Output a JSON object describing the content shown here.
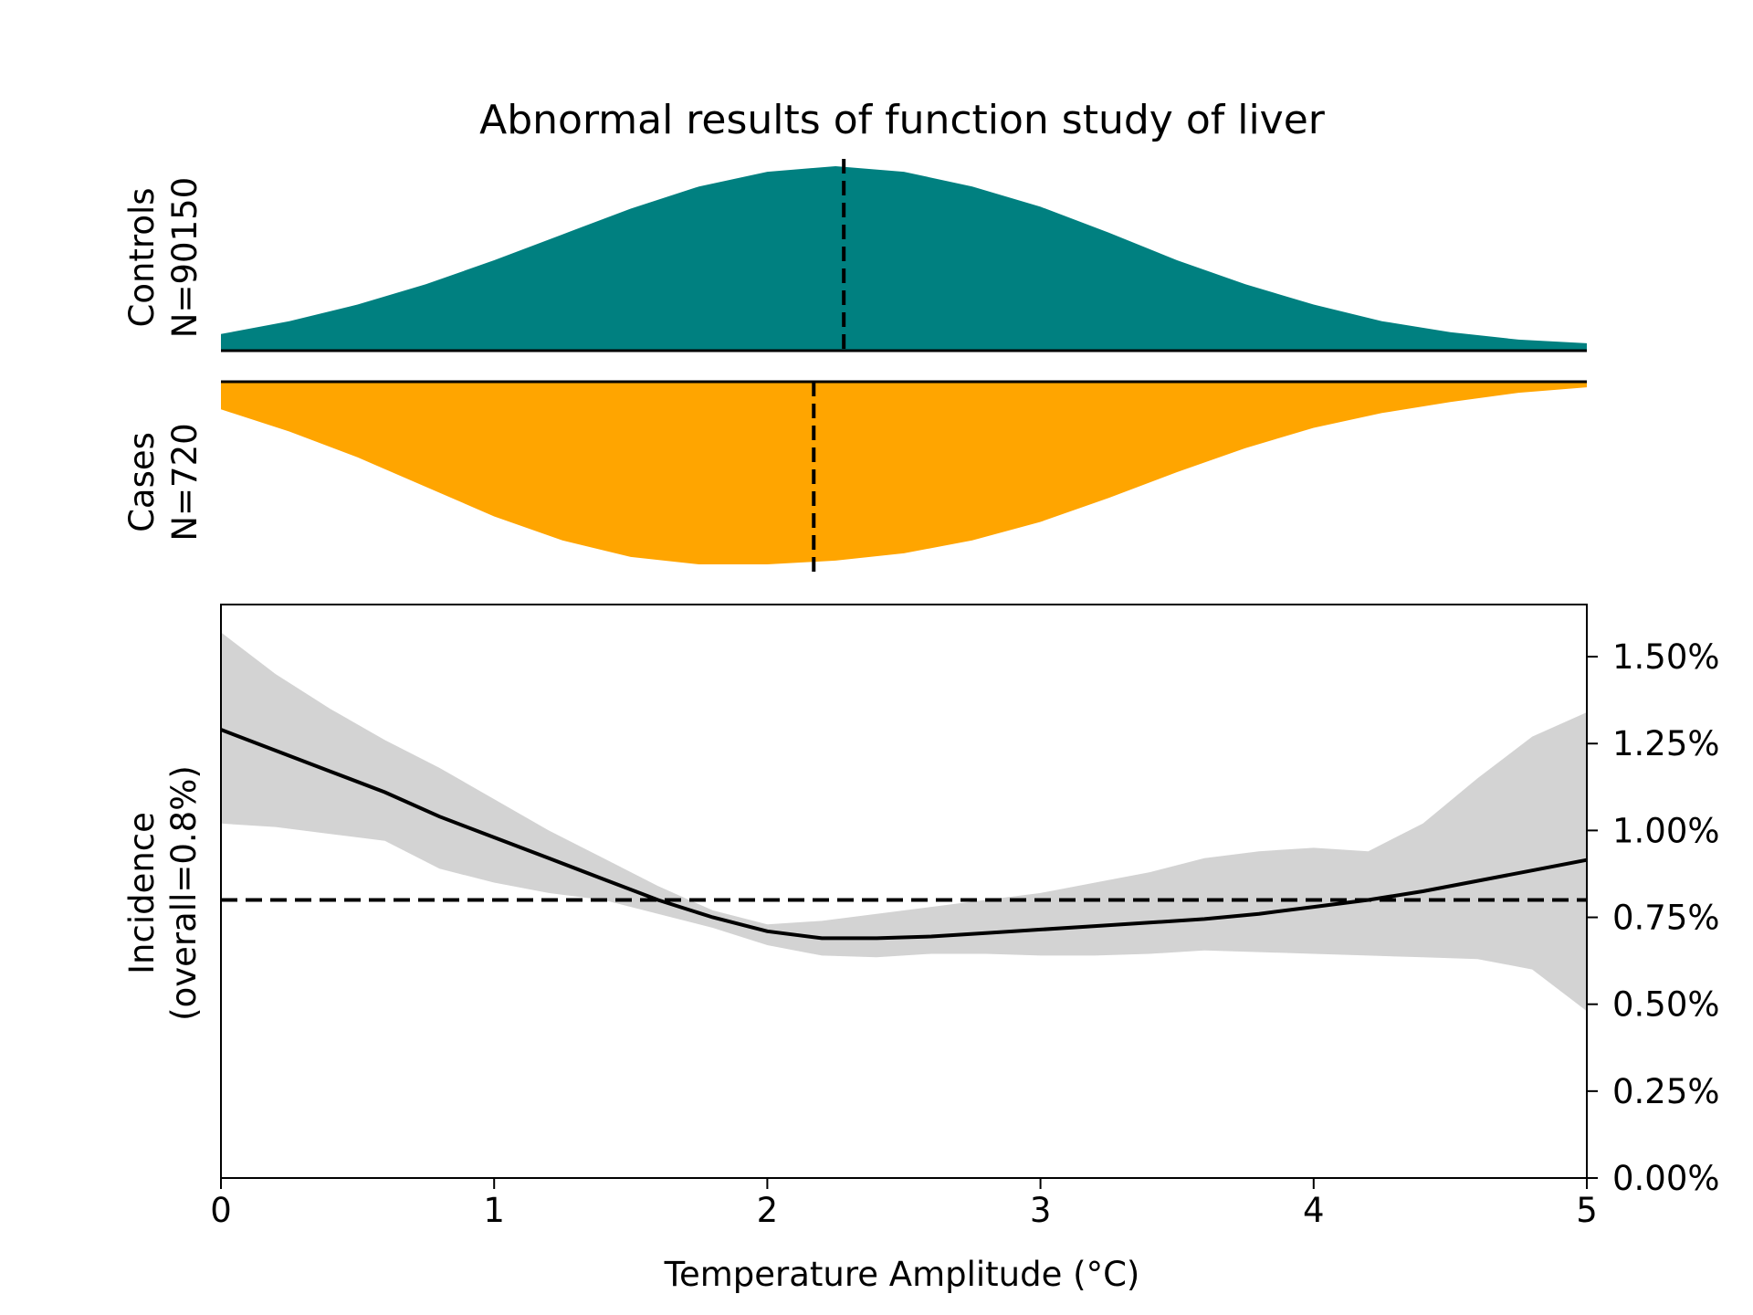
{
  "chart_data": {
    "type": "area",
    "title": "Abnormal results of function study of liver",
    "xlabel": "Temperature Amplitude (°C)",
    "xlim": [
      0,
      5
    ],
    "x_ticks": [
      {
        "value": 0,
        "label": "0"
      },
      {
        "value": 1,
        "label": "1"
      },
      {
        "value": 2,
        "label": "2"
      },
      {
        "value": 3,
        "label": "3"
      },
      {
        "value": 4,
        "label": "4"
      },
      {
        "value": 5,
        "label": "5"
      }
    ],
    "distributions": {
      "controls": {
        "label_line1": "Controls",
        "label_line2": "N=90150",
        "color": "#008080",
        "median": 2.28,
        "density": {
          "x": [
            0,
            0.25,
            0.5,
            0.75,
            1,
            1.25,
            1.5,
            1.75,
            2,
            2.25,
            2.5,
            2.75,
            3,
            3.25,
            3.5,
            3.75,
            4,
            4.25,
            4.5,
            4.75,
            5
          ],
          "y": [
            0.09,
            0.16,
            0.25,
            0.36,
            0.49,
            0.63,
            0.77,
            0.89,
            0.97,
            1.0,
            0.97,
            0.89,
            0.78,
            0.64,
            0.49,
            0.36,
            0.25,
            0.16,
            0.1,
            0.06,
            0.04
          ]
        }
      },
      "cases": {
        "label_line1": "Cases",
        "label_line2": "N=720",
        "color": "#FFA500",
        "median": 2.17,
        "density": {
          "x": [
            0,
            0.25,
            0.5,
            0.75,
            1,
            1.25,
            1.5,
            1.75,
            2,
            2.25,
            2.5,
            2.75,
            3,
            3.25,
            3.5,
            3.75,
            4,
            4.25,
            4.5,
            4.75,
            5
          ],
          "y": [
            0.15,
            0.27,
            0.41,
            0.57,
            0.73,
            0.86,
            0.95,
            0.99,
            0.99,
            0.97,
            0.93,
            0.86,
            0.76,
            0.63,
            0.49,
            0.36,
            0.25,
            0.17,
            0.11,
            0.06,
            0.03
          ]
        }
      }
    },
    "incidence": {
      "ylabel_line1": "Incidence",
      "ylabel_line2": "(overall=0.8%)",
      "ylim": [
        0,
        1.65
      ],
      "y_ticks": [
        {
          "value": 0,
          "label": "0.00%"
        },
        {
          "value": 0.25,
          "label": "0.25%"
        },
        {
          "value": 0.5,
          "label": "0.50%"
        },
        {
          "value": 0.75,
          "label": "0.75%"
        },
        {
          "value": 1.0,
          "label": "1.00%"
        },
        {
          "value": 1.25,
          "label": "1.25%"
        },
        {
          "value": 1.5,
          "label": "1.50%"
        }
      ],
      "overall": 0.8,
      "band_color": "#D3D3D3",
      "line_color": "#000000",
      "x": [
        0,
        0.2,
        0.4,
        0.6,
        0.8,
        1.0,
        1.2,
        1.4,
        1.6,
        1.8,
        2.0,
        2.2,
        2.4,
        2.6,
        2.8,
        3.0,
        3.2,
        3.4,
        3.6,
        3.8,
        4.0,
        4.2,
        4.4,
        4.6,
        4.8,
        5.0
      ],
      "y": [
        1.29,
        1.23,
        1.17,
        1.11,
        1.04,
        0.98,
        0.92,
        0.86,
        0.8,
        0.75,
        0.71,
        0.69,
        0.69,
        0.695,
        0.705,
        0.715,
        0.725,
        0.735,
        0.745,
        0.76,
        0.78,
        0.8,
        0.825,
        0.855,
        0.885,
        0.915
      ],
      "lower": [
        1.02,
        1.01,
        0.99,
        0.97,
        0.89,
        0.85,
        0.82,
        0.8,
        0.76,
        0.72,
        0.67,
        0.64,
        0.635,
        0.645,
        0.645,
        0.64,
        0.64,
        0.645,
        0.655,
        0.65,
        0.645,
        0.64,
        0.635,
        0.63,
        0.6,
        0.48
      ],
      "upper": [
        1.57,
        1.45,
        1.35,
        1.26,
        1.18,
        1.09,
        1.0,
        0.92,
        0.84,
        0.77,
        0.73,
        0.74,
        0.76,
        0.78,
        0.8,
        0.82,
        0.85,
        0.88,
        0.92,
        0.94,
        0.95,
        0.94,
        1.02,
        1.15,
        1.27,
        1.34
      ]
    }
  }
}
